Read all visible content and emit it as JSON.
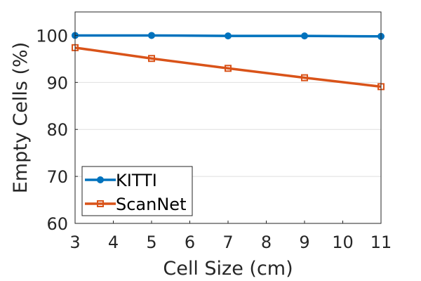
{
  "chart_data": {
    "type": "line",
    "xlabel": "Cell Size (cm)",
    "ylabel": "Empty Cells (%)",
    "xlim": [
      3,
      11
    ],
    "ylim": [
      60,
      105
    ],
    "x_ticks": [
      3,
      4,
      5,
      6,
      7,
      8,
      9,
      10,
      11
    ],
    "y_ticks": [
      60,
      70,
      80,
      90,
      100
    ],
    "grid": "horizontal",
    "legend_position": "bottom-left",
    "x": [
      3,
      5,
      7,
      9,
      11
    ],
    "series": [
      {
        "name": "KITTI",
        "values": [
          100.0,
          100.0,
          99.9,
          99.9,
          99.8
        ],
        "color": "#0072bd",
        "marker": "circle"
      },
      {
        "name": "ScanNet",
        "values": [
          97.4,
          95.1,
          93.0,
          91.0,
          89.1
        ],
        "color": "#d95319",
        "marker": "square"
      }
    ]
  }
}
